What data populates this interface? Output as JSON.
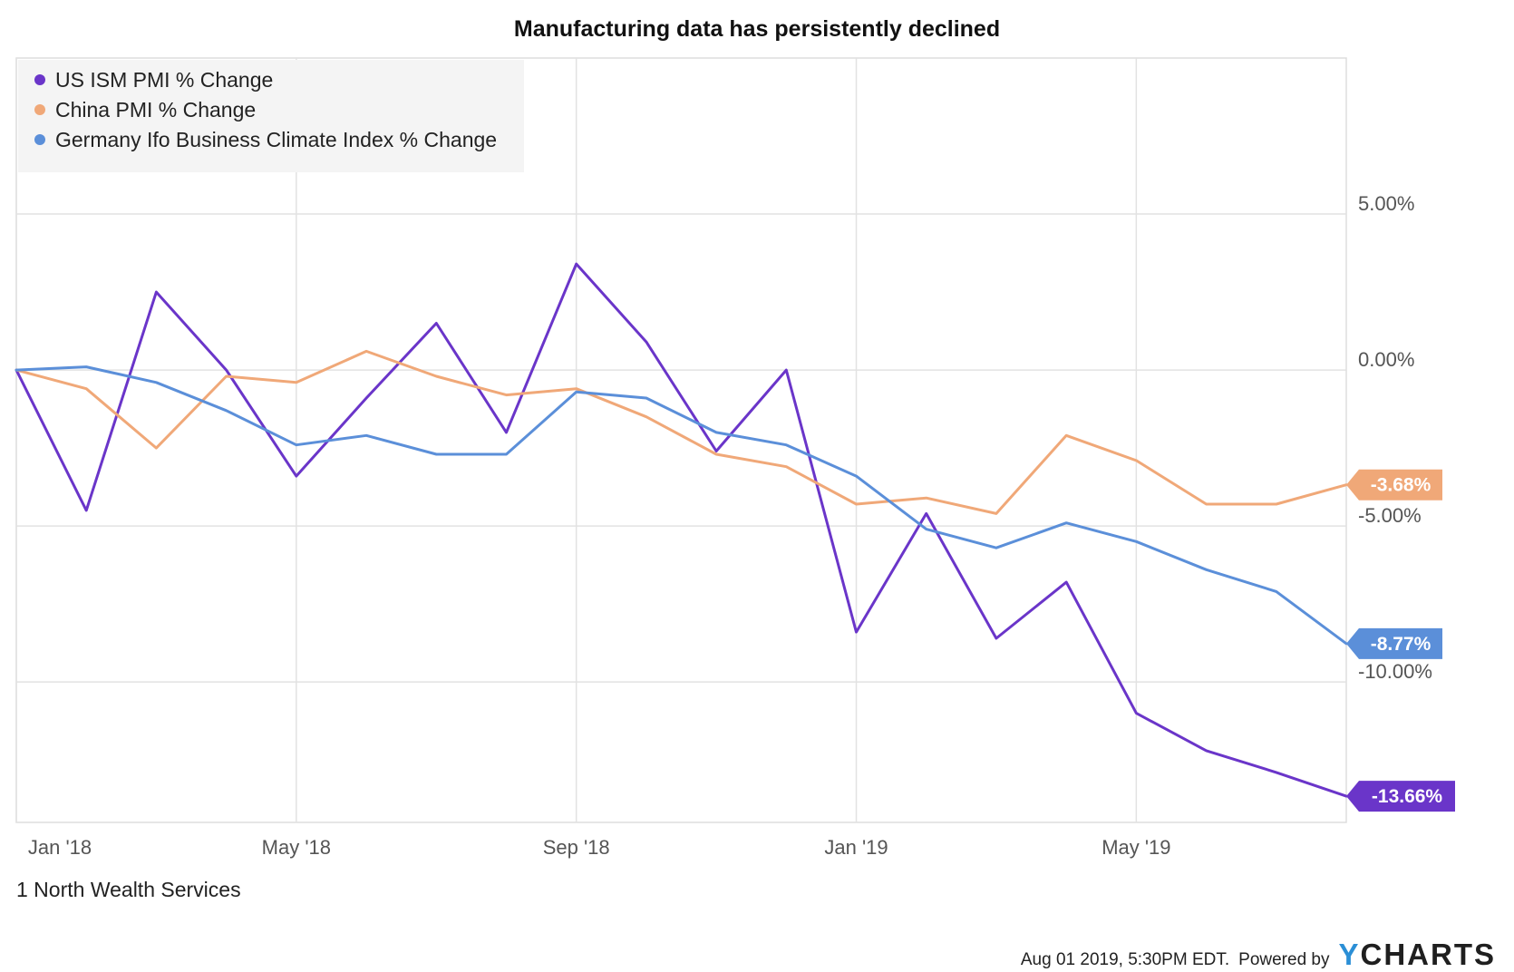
{
  "chart_data": {
    "type": "line",
    "title": "Manufacturing data has persistently declined",
    "x": [
      "2018-01",
      "2018-02",
      "2018-03",
      "2018-04",
      "2018-05",
      "2018-06",
      "2018-07",
      "2018-08",
      "2018-09",
      "2018-10",
      "2018-11",
      "2018-12",
      "2019-01",
      "2019-02",
      "2019-03",
      "2019-04",
      "2019-05",
      "2019-06",
      "2019-07",
      "2019-08"
    ],
    "x_ticks": [
      "Jan '18",
      "May '18",
      "Sep '18",
      "Jan '19",
      "May '19"
    ],
    "y_ticks": [
      "5.00%",
      "0.00%",
      "-5.00%",
      "-10.00%"
    ],
    "y_tick_values": [
      5,
      0,
      -5,
      -10
    ],
    "ylim": [
      -14.5,
      10
    ],
    "grid": true,
    "legend_position": "top-left",
    "series": [
      {
        "name": "US ISM PMI % Change",
        "color": "#6a35c9",
        "values": [
          0,
          -4.5,
          2.5,
          0,
          -3.4,
          -0.9,
          1.5,
          -2.0,
          3.4,
          0.9,
          -2.6,
          0,
          -8.4,
          -4.6,
          -8.6,
          -6.8,
          -11.0,
          -12.2,
          -12.9,
          -13.66
        ],
        "end_label": "-13.66%"
      },
      {
        "name": "China PMI % Change",
        "color": "#f0a878",
        "values": [
          0,
          -0.6,
          -2.5,
          -0.2,
          -0.4,
          0.6,
          -0.2,
          -0.8,
          -0.6,
          -1.5,
          -2.7,
          -3.1,
          -4.3,
          -4.1,
          -4.6,
          -2.1,
          -2.9,
          -4.3,
          -4.3,
          -3.68
        ],
        "end_label": "-3.68%"
      },
      {
        "name": "Germany Ifo Business Climate Index % Change",
        "color": "#5b8fd9",
        "values": [
          0,
          0.1,
          -0.4,
          -1.3,
          -2.4,
          -2.1,
          -2.7,
          -2.7,
          -0.7,
          -0.9,
          -2.0,
          -2.4,
          -3.4,
          -5.1,
          -5.7,
          -4.9,
          -5.5,
          -6.4,
          -7.1,
          -8.77
        ],
        "end_label": "-8.77%"
      }
    ]
  },
  "footer": {
    "source": "1 North Wealth Services",
    "timestamp": "Aug 01 2019, 5:30PM EDT.",
    "powered_by": "Powered by",
    "brand_y": "Y",
    "brand_rest": "CHARTS"
  }
}
